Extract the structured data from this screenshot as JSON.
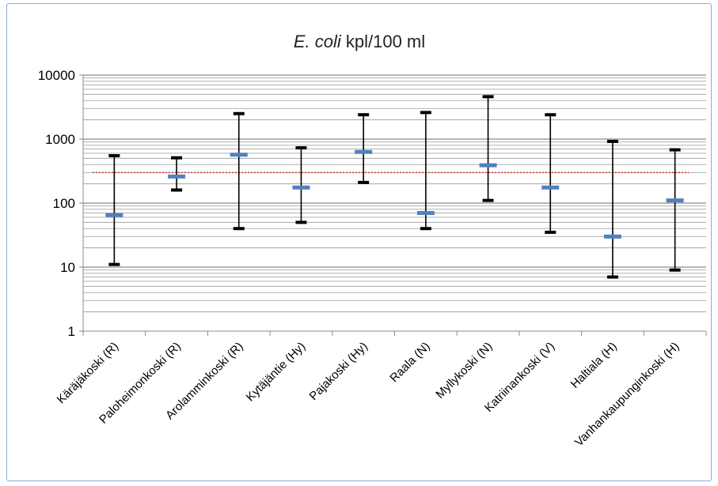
{
  "chart_data": {
    "type": "range",
    "title_italic": "E. coli",
    "title_rest": " kpl/100 ml",
    "y_scale": "log",
    "ylim": [
      1,
      10000
    ],
    "y_ticks": [
      1,
      10,
      100,
      1000,
      10000
    ],
    "y_tick_labels": [
      "1",
      "10",
      "100",
      "1000",
      "10000"
    ],
    "grid": true,
    "reference_line": {
      "value": 300,
      "color": "#e03030",
      "style": "dotted"
    },
    "categories": [
      "Käräjäkoski (R)",
      "Paloheimonkoski (R)",
      "Arolamminkoski (R)",
      "Kytäjäntie (Hy)",
      "Pajakoski (Hy)",
      "Raala (N)",
      "Myllykoski (N)",
      "Katriinankoski (V)",
      "Haltiala (H)",
      "Vanhankaupunginkoski (H)"
    ],
    "series": [
      {
        "values": [
          11,
          160,
          40,
          50,
          210,
          40,
          110,
          35,
          7,
          9
        ],
        "color": "#000000",
        "marker": "min"
      },
      {
        "values": [
          550,
          510,
          2500,
          730,
          2400,
          2600,
          4600,
          2400,
          920,
          680
        ],
        "color": "#000000",
        "marker": "max"
      },
      {
        "values": [
          65,
          260,
          570,
          175,
          630,
          70,
          390,
          175,
          30,
          110
        ],
        "color": "#4f81bd",
        "marker": "center"
      }
    ]
  }
}
